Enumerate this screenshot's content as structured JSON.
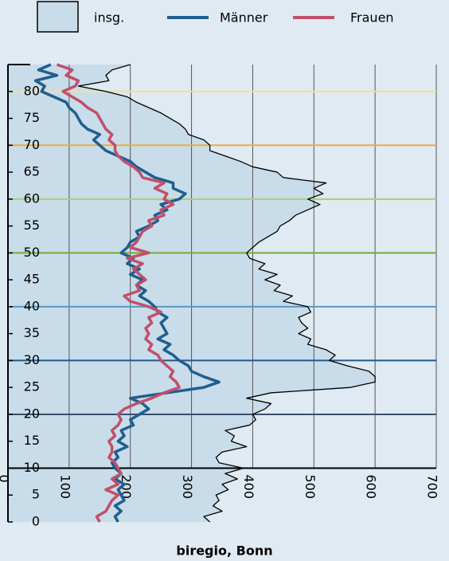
{
  "chart_data": {
    "type": "line",
    "x_label": "biregio, Bonn",
    "xlim": [
      0,
      700
    ],
    "xticks": [
      0,
      100,
      200,
      300,
      400,
      500,
      600,
      700
    ],
    "ylim": [
      0,
      85
    ],
    "yticks": [
      0,
      5,
      10,
      15,
      20,
      25,
      30,
      35,
      40,
      45,
      50,
      55,
      60,
      65,
      70,
      75,
      80
    ],
    "grid": true,
    "y": [
      0,
      1,
      2,
      3,
      4,
      5,
      6,
      7,
      8,
      9,
      10,
      11,
      12,
      13,
      14,
      15,
      16,
      17,
      18,
      19,
      20,
      21,
      22,
      23,
      24,
      25,
      26,
      27,
      28,
      29,
      30,
      31,
      32,
      33,
      34,
      35,
      36,
      37,
      38,
      39,
      40,
      41,
      42,
      43,
      44,
      45,
      46,
      47,
      48,
      49,
      50,
      51,
      52,
      53,
      54,
      55,
      56,
      57,
      58,
      59,
      60,
      61,
      62,
      63,
      64,
      65,
      66,
      67,
      68,
      69,
      70,
      71,
      72,
      73,
      74,
      75,
      76,
      77,
      78,
      79,
      80,
      81,
      82,
      83,
      84,
      85
    ],
    "hlines": [
      {
        "value": 10,
        "color": "#000000"
      },
      {
        "value": 20,
        "color": "#3b4f6b"
      },
      {
        "value": 30,
        "color": "#1d5a8e"
      },
      {
        "value": 40,
        "color": "#5b97c6"
      },
      {
        "value": 50,
        "color": "#7aa83a"
      },
      {
        "value": 60,
        "color": "#a8cf7a"
      },
      {
        "value": 70,
        "color": "#e8b040"
      },
      {
        "value": 80,
        "color": "#f4df9a"
      }
    ],
    "series": [
      {
        "name": "insg.",
        "kind": "area",
        "color": "#000000",
        "fill": "#c9dce9",
        "values": [
          330,
          320,
          350,
          335,
          345,
          340,
          360,
          350,
          375,
          355,
          385,
          345,
          340,
          350,
          390,
          365,
          370,
          355,
          395,
          405,
          400,
          420,
          430,
          390,
          430,
          560,
          600,
          600,
          590,
          555,
          525,
          535,
          520,
          490,
          495,
          475,
          490,
          480,
          475,
          495,
          490,
          450,
          465,
          435,
          445,
          420,
          440,
          410,
          420,
          395,
          390,
          400,
          410,
          425,
          440,
          445,
          460,
          470,
          490,
          510,
          490,
          515,
          500,
          520,
          450,
          440,
          400,
          380,
          355,
          330,
          330,
          320,
          295,
          290,
          280,
          265,
          250,
          230,
          210,
          195,
          160,
          115,
          165,
          160,
          170,
          200
        ]
      },
      {
        "name": "Männer",
        "kind": "line",
        "color": "#1f5f8f",
        "values": [
          180,
          175,
          185,
          175,
          190,
          185,
          180,
          190,
          175,
          185,
          175,
          170,
          180,
          175,
          195,
          180,
          190,
          185,
          205,
          200,
          215,
          230,
          220,
          200,
          260,
          320,
          345,
          320,
          300,
          295,
          280,
          270,
          255,
          265,
          245,
          260,
          255,
          250,
          260,
          245,
          240,
          230,
          215,
          225,
          210,
          220,
          200,
          215,
          195,
          205,
          185,
          195,
          200,
          215,
          210,
          230,
          245,
          240,
          260,
          250,
          280,
          290,
          270,
          270,
          240,
          225,
          210,
          200,
          180,
          160,
          150,
          140,
          150,
          130,
          120,
          115,
          110,
          100,
          95,
          75,
          55,
          60,
          45,
          80,
          50,
          70
        ]
      },
      {
        "name": "Frauen",
        "kind": "line",
        "color": "#c0506a",
        "values": [
          150,
          145,
          160,
          165,
          170,
          180,
          160,
          180,
          170,
          185,
          180,
          175,
          165,
          170,
          170,
          165,
          175,
          170,
          180,
          185,
          180,
          190,
          210,
          235,
          255,
          280,
          275,
          265,
          270,
          260,
          250,
          245,
          230,
          235,
          225,
          230,
          225,
          235,
          230,
          250,
          230,
          200,
          190,
          215,
          210,
          225,
          215,
          205,
          220,
          195,
          230,
          200,
          210,
          215,
          220,
          235,
          230,
          255,
          250,
          270,
          255,
          260,
          240,
          255,
          220,
          215,
          205,
          190,
          180,
          175,
          175,
          165,
          170,
          160,
          155,
          150,
          145,
          130,
          120,
          105,
          90,
          110,
          115,
          95,
          105,
          80
        ]
      }
    ]
  }
}
